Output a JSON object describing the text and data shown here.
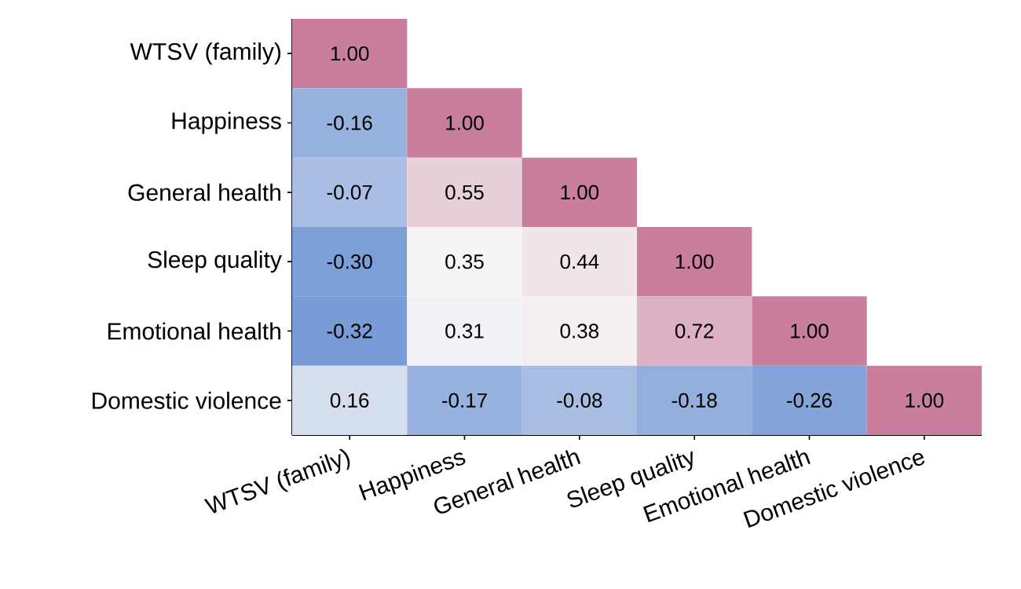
{
  "chart_data": {
    "type": "heatmap",
    "categories": [
      "WTSV (family)",
      "Happiness",
      "General health",
      "Sleep quality",
      "Emotional health",
      "Domestic violence"
    ],
    "y_categories": [
      "WTSV (family)",
      "Happiness",
      "General health",
      "Sleep quality",
      "Emotional health",
      "Domestic violence"
    ],
    "cells": [
      [
        1.0,
        null,
        null,
        null,
        null,
        null
      ],
      [
        -0.16,
        1.0,
        null,
        null,
        null,
        null
      ],
      [
        -0.07,
        0.55,
        1.0,
        null,
        null,
        null
      ],
      [
        -0.3,
        0.35,
        0.44,
        1.0,
        null,
        null
      ],
      [
        -0.32,
        0.31,
        0.38,
        0.72,
        1.0,
        null
      ],
      [
        0.16,
        -0.17,
        -0.08,
        -0.18,
        -0.26,
        1.0
      ]
    ],
    "cell_labels": [
      [
        "1.00",
        null,
        null,
        null,
        null,
        null
      ],
      [
        "-0.16",
        "1.00",
        null,
        null,
        null,
        null
      ],
      [
        "-0.07",
        "0.55",
        "1.00",
        null,
        null,
        null
      ],
      [
        "-0.30",
        "0.35",
        "0.44",
        "1.00",
        null,
        null
      ],
      [
        "-0.32",
        "0.31",
        "0.38",
        "0.72",
        "1.00",
        null
      ],
      [
        "0.16",
        "-0.17",
        "-0.08",
        "-0.18",
        "-0.26",
        "1.00"
      ]
    ]
  }
}
